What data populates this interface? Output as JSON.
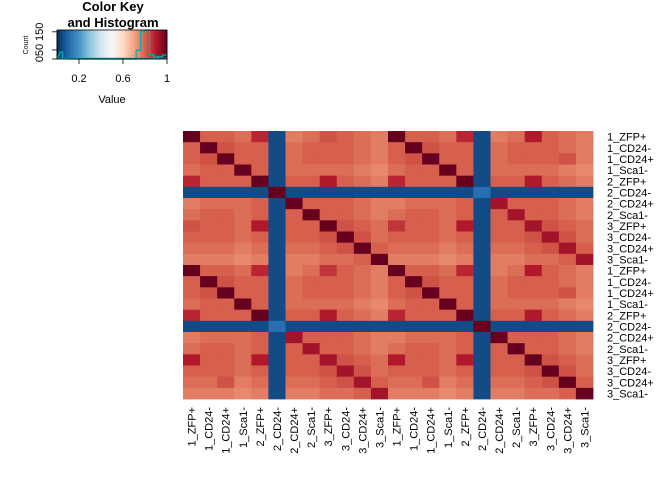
{
  "chart_data": {
    "type": "heatmap",
    "row_labels": [
      "1_ZFP+",
      "1_CD24-",
      "1_CD24+",
      "1_Sca1-",
      "2_ZFP+",
      "2_CD24-",
      "2_CD24+",
      "2_Sca1-",
      "3_ZFP+",
      "3_CD24-",
      "3_CD24+",
      "3_Sca1-",
      "1_ZFP+",
      "1_CD24-",
      "1_CD24+",
      "1_Sca1-",
      "2_ZFP+",
      "2_CD24-",
      "2_CD24+",
      "2_Sca1-",
      "3_ZFP+",
      "3_CD24-",
      "3_CD24+",
      "3_Sca1-"
    ],
    "col_labels": [
      "1_ZFP+",
      "1_CD24-",
      "1_CD24+",
      "1_Sca1-",
      "2_ZFP+",
      "2_CD24-",
      "2_CD24+",
      "2_Sca1-",
      "3_ZFP+",
      "3_CD24-",
      "3_CD24+",
      "3_Sca1-",
      "1_ZFP+",
      "1_CD24-",
      "1_CD24+",
      "1_Sca1-",
      "2_ZFP+",
      "2_CD24-",
      "2_CD24+",
      "2_Sca1-",
      "3_ZFP+",
      "3_CD24-",
      "3_CD24+",
      "3_Sca1-"
    ],
    "values": [
      [
        1.0,
        0.8,
        0.8,
        0.78,
        0.88,
        0.05,
        0.76,
        0.78,
        0.82,
        0.8,
        0.78,
        0.76,
        1.0,
        0.8,
        0.8,
        0.78,
        0.88,
        0.05,
        0.76,
        0.78,
        0.9,
        0.8,
        0.78,
        0.76
      ],
      [
        0.8,
        1.0,
        0.82,
        0.8,
        0.8,
        0.05,
        0.78,
        0.8,
        0.8,
        0.8,
        0.78,
        0.76,
        0.8,
        1.0,
        0.82,
        0.8,
        0.8,
        0.05,
        0.78,
        0.8,
        0.8,
        0.8,
        0.78,
        0.76
      ],
      [
        0.8,
        0.82,
        1.0,
        0.8,
        0.8,
        0.05,
        0.78,
        0.8,
        0.8,
        0.8,
        0.78,
        0.76,
        0.8,
        0.82,
        1.0,
        0.8,
        0.8,
        0.05,
        0.78,
        0.8,
        0.8,
        0.8,
        0.82,
        0.76
      ],
      [
        0.78,
        0.8,
        0.8,
        1.0,
        0.8,
        0.05,
        0.78,
        0.78,
        0.78,
        0.78,
        0.76,
        0.74,
        0.78,
        0.8,
        0.8,
        1.0,
        0.8,
        0.05,
        0.78,
        0.78,
        0.78,
        0.78,
        0.76,
        0.74
      ],
      [
        0.88,
        0.8,
        0.8,
        0.8,
        1.0,
        0.05,
        0.8,
        0.8,
        0.9,
        0.8,
        0.78,
        0.76,
        0.88,
        0.8,
        0.8,
        0.8,
        1.0,
        0.05,
        0.8,
        0.8,
        0.9,
        0.8,
        0.78,
        0.76
      ],
      [
        0.05,
        0.05,
        0.05,
        0.05,
        0.05,
        1.0,
        0.05,
        0.05,
        0.05,
        0.05,
        0.05,
        0.05,
        0.05,
        0.05,
        0.05,
        0.05,
        0.05,
        0.12,
        0.05,
        0.05,
        0.05,
        0.05,
        0.05,
        0.05
      ],
      [
        0.76,
        0.78,
        0.78,
        0.78,
        0.8,
        0.05,
        1.0,
        0.8,
        0.8,
        0.8,
        0.78,
        0.76,
        0.76,
        0.78,
        0.78,
        0.78,
        0.8,
        0.05,
        0.92,
        0.8,
        0.8,
        0.8,
        0.78,
        0.76
      ],
      [
        0.78,
        0.8,
        0.8,
        0.78,
        0.8,
        0.05,
        0.8,
        1.0,
        0.8,
        0.8,
        0.78,
        0.76,
        0.78,
        0.8,
        0.8,
        0.78,
        0.8,
        0.05,
        0.8,
        0.92,
        0.8,
        0.8,
        0.78,
        0.76
      ],
      [
        0.82,
        0.8,
        0.8,
        0.78,
        0.9,
        0.05,
        0.8,
        0.8,
        1.0,
        0.82,
        0.8,
        0.78,
        0.86,
        0.8,
        0.8,
        0.78,
        0.9,
        0.05,
        0.8,
        0.8,
        0.92,
        0.82,
        0.8,
        0.78
      ],
      [
        0.8,
        0.8,
        0.8,
        0.78,
        0.8,
        0.05,
        0.8,
        0.8,
        0.82,
        1.0,
        0.82,
        0.78,
        0.8,
        0.8,
        0.8,
        0.78,
        0.8,
        0.05,
        0.8,
        0.8,
        0.82,
        0.92,
        0.82,
        0.78
      ],
      [
        0.78,
        0.78,
        0.78,
        0.76,
        0.78,
        0.05,
        0.78,
        0.78,
        0.8,
        0.82,
        1.0,
        0.8,
        0.78,
        0.78,
        0.78,
        0.76,
        0.78,
        0.05,
        0.78,
        0.78,
        0.8,
        0.82,
        0.92,
        0.8
      ],
      [
        0.76,
        0.76,
        0.76,
        0.74,
        0.76,
        0.05,
        0.76,
        0.76,
        0.78,
        0.78,
        0.8,
        1.0,
        0.76,
        0.76,
        0.76,
        0.74,
        0.76,
        0.05,
        0.76,
        0.76,
        0.78,
        0.78,
        0.8,
        0.92
      ],
      [
        1.0,
        0.8,
        0.8,
        0.78,
        0.88,
        0.05,
        0.76,
        0.78,
        0.86,
        0.8,
        0.78,
        0.76,
        1.0,
        0.8,
        0.8,
        0.78,
        0.88,
        0.05,
        0.76,
        0.78,
        0.9,
        0.8,
        0.78,
        0.76
      ],
      [
        0.8,
        1.0,
        0.82,
        0.8,
        0.8,
        0.05,
        0.78,
        0.8,
        0.8,
        0.8,
        0.78,
        0.76,
        0.8,
        1.0,
        0.82,
        0.8,
        0.8,
        0.05,
        0.78,
        0.8,
        0.8,
        0.8,
        0.78,
        0.76
      ],
      [
        0.8,
        0.82,
        1.0,
        0.8,
        0.8,
        0.05,
        0.78,
        0.8,
        0.8,
        0.8,
        0.78,
        0.76,
        0.8,
        0.82,
        1.0,
        0.8,
        0.8,
        0.05,
        0.78,
        0.8,
        0.8,
        0.8,
        0.82,
        0.76
      ],
      [
        0.78,
        0.8,
        0.8,
        1.0,
        0.8,
        0.05,
        0.78,
        0.78,
        0.78,
        0.78,
        0.76,
        0.74,
        0.78,
        0.8,
        0.8,
        1.0,
        0.8,
        0.05,
        0.78,
        0.78,
        0.78,
        0.78,
        0.76,
        0.74
      ],
      [
        0.88,
        0.8,
        0.8,
        0.8,
        1.0,
        0.05,
        0.8,
        0.8,
        0.9,
        0.8,
        0.78,
        0.76,
        0.88,
        0.8,
        0.8,
        0.8,
        1.0,
        0.05,
        0.8,
        0.8,
        0.9,
        0.8,
        0.78,
        0.76
      ],
      [
        0.05,
        0.05,
        0.05,
        0.05,
        0.05,
        0.12,
        0.05,
        0.05,
        0.05,
        0.05,
        0.05,
        0.05,
        0.05,
        0.05,
        0.05,
        0.05,
        0.05,
        1.0,
        0.05,
        0.05,
        0.05,
        0.05,
        0.05,
        0.05
      ],
      [
        0.76,
        0.78,
        0.78,
        0.78,
        0.8,
        0.05,
        0.92,
        0.8,
        0.8,
        0.8,
        0.78,
        0.76,
        0.76,
        0.78,
        0.78,
        0.78,
        0.8,
        0.05,
        1.0,
        0.8,
        0.8,
        0.8,
        0.78,
        0.76
      ],
      [
        0.78,
        0.8,
        0.8,
        0.78,
        0.8,
        0.05,
        0.8,
        0.92,
        0.8,
        0.8,
        0.78,
        0.76,
        0.78,
        0.8,
        0.8,
        0.78,
        0.8,
        0.05,
        0.8,
        1.0,
        0.8,
        0.8,
        0.78,
        0.76
      ],
      [
        0.9,
        0.8,
        0.8,
        0.78,
        0.9,
        0.05,
        0.8,
        0.8,
        0.92,
        0.82,
        0.8,
        0.78,
        0.9,
        0.8,
        0.8,
        0.78,
        0.9,
        0.05,
        0.8,
        0.8,
        1.0,
        0.82,
        0.8,
        0.78
      ],
      [
        0.8,
        0.8,
        0.8,
        0.78,
        0.8,
        0.05,
        0.8,
        0.8,
        0.82,
        0.92,
        0.82,
        0.78,
        0.8,
        0.8,
        0.8,
        0.78,
        0.8,
        0.05,
        0.8,
        0.8,
        0.82,
        1.0,
        0.82,
        0.78
      ],
      [
        0.78,
        0.78,
        0.82,
        0.76,
        0.78,
        0.05,
        0.78,
        0.78,
        0.8,
        0.82,
        0.92,
        0.8,
        0.78,
        0.78,
        0.82,
        0.76,
        0.78,
        0.05,
        0.78,
        0.78,
        0.8,
        0.82,
        1.0,
        0.8
      ],
      [
        0.76,
        0.76,
        0.76,
        0.74,
        0.76,
        0.05,
        0.76,
        0.76,
        0.78,
        0.78,
        0.8,
        0.92,
        0.76,
        0.76,
        0.76,
        0.74,
        0.76,
        0.05,
        0.76,
        0.76,
        0.78,
        0.78,
        0.8,
        1.0
      ]
    ],
    "color_scale": [
      "#053061",
      "#2166ac",
      "#4393c3",
      "#92c5de",
      "#d1e5f0",
      "#f7f7f7",
      "#fddbc7",
      "#f4a582",
      "#d6604d",
      "#b2182b",
      "#67001f"
    ],
    "color_range": [
      0,
      1
    ],
    "key": {
      "title_line1": "Color Key",
      "title_line2": "and Histogram",
      "xlabel": "Value",
      "ylabel": "Count",
      "x_ticks": [
        "0.2",
        "0.6",
        "1"
      ],
      "x_tick_values": [
        0.2,
        0.6,
        1.0
      ],
      "y_ticks": [
        "0",
        "50",
        "150"
      ],
      "y_tick_values": [
        0,
        50,
        150
      ],
      "y_max": 160,
      "hist_color": "#00b0b0",
      "histogram": [
        {
          "x0": 0.03,
          "x1": 0.05,
          "count": 38
        },
        {
          "x0": 0.05,
          "x1": 0.1,
          "count": 2
        },
        {
          "x0": 0.1,
          "x1": 0.72,
          "count": 0
        },
        {
          "x0": 0.72,
          "x1": 0.76,
          "count": 48
        },
        {
          "x0": 0.76,
          "x1": 0.8,
          "count": 150
        },
        {
          "x0": 0.8,
          "x1": 0.84,
          "count": 170
        },
        {
          "x0": 0.84,
          "x1": 0.88,
          "count": 24
        },
        {
          "x0": 0.88,
          "x1": 0.92,
          "count": 10
        },
        {
          "x0": 0.92,
          "x1": 0.96,
          "count": 14
        },
        {
          "x0": 0.96,
          "x1": 1.0,
          "count": 22
        }
      ]
    }
  }
}
